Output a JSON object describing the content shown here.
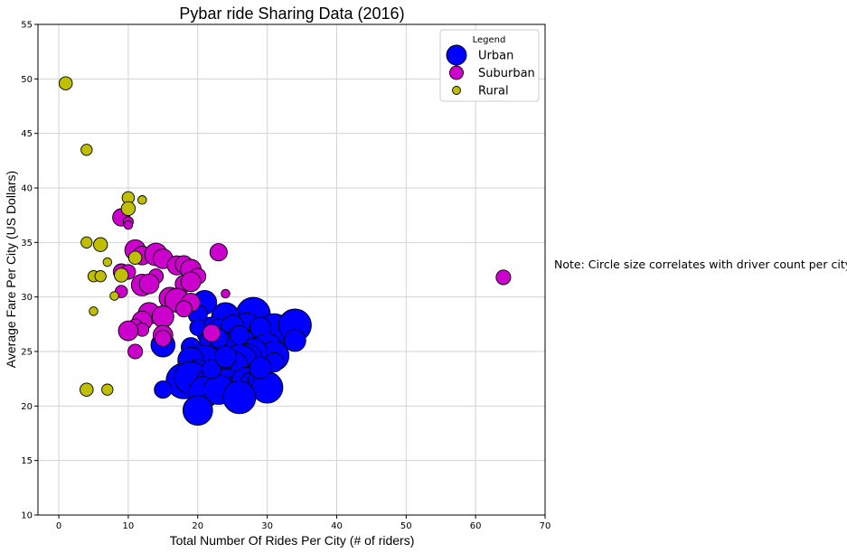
{
  "chart_data": {
    "type": "scatter",
    "title": "Pybar ride Sharing Data (2016)",
    "xlabel": "Total Number Of Rides Per City (# of riders)",
    "ylabel": "Average Fare Per City (US Dollars)",
    "xlim": [
      -3,
      70
    ],
    "ylim": [
      10,
      55
    ],
    "xticks": [
      "0",
      "10",
      "20",
      "30",
      "40",
      "50",
      "60",
      "70"
    ],
    "yticks": [
      "10",
      "15",
      "20",
      "25",
      "30",
      "35",
      "40",
      "45",
      "50",
      "55"
    ],
    "grid": true,
    "legend": {
      "title": "Legend",
      "placement": "top-right"
    },
    "note": "Note: Circle size correlates with driver count per city",
    "size_field": "approximate driver count per city (marker area)",
    "series": [
      {
        "name": "Urban",
        "color": "#0000ff",
        "points": [
          {
            "x": 28,
            "y": 28.4,
            "s": 55
          },
          {
            "x": 31,
            "y": 26.9,
            "s": 55
          },
          {
            "x": 34,
            "y": 27.4,
            "s": 50
          },
          {
            "x": 27,
            "y": 27.1,
            "s": 45
          },
          {
            "x": 24,
            "y": 28.2,
            "s": 35
          },
          {
            "x": 22,
            "y": 26.8,
            "s": 40
          },
          {
            "x": 21,
            "y": 29.5,
            "s": 25
          },
          {
            "x": 20,
            "y": 28.4,
            "s": 15
          },
          {
            "x": 23,
            "y": 27.0,
            "s": 20
          },
          {
            "x": 25,
            "y": 27.3,
            "s": 22
          },
          {
            "x": 29,
            "y": 27.2,
            "s": 18
          },
          {
            "x": 26,
            "y": 25.9,
            "s": 40
          },
          {
            "x": 24,
            "y": 25.5,
            "s": 30
          },
          {
            "x": 22,
            "y": 25.9,
            "s": 25
          },
          {
            "x": 19,
            "y": 25.4,
            "s": 15
          },
          {
            "x": 15,
            "y": 25.6,
            "s": 25
          },
          {
            "x": 30,
            "y": 25.2,
            "s": 45
          },
          {
            "x": 31,
            "y": 24.6,
            "s": 40
          },
          {
            "x": 34,
            "y": 26.0,
            "s": 20
          },
          {
            "x": 28,
            "y": 24.9,
            "s": 35
          },
          {
            "x": 27,
            "y": 24.2,
            "s": 50
          },
          {
            "x": 26,
            "y": 24.0,
            "s": 60
          },
          {
            "x": 25,
            "y": 23.6,
            "s": 45
          },
          {
            "x": 21,
            "y": 24.1,
            "s": 50
          },
          {
            "x": 19,
            "y": 24.2,
            "s": 30
          },
          {
            "x": 20,
            "y": 23.0,
            "s": 35
          },
          {
            "x": 18,
            "y": 22.3,
            "s": 60
          },
          {
            "x": 19,
            "y": 22.6,
            "s": 50
          },
          {
            "x": 22,
            "y": 22.3,
            "s": 40
          },
          {
            "x": 23,
            "y": 23.0,
            "s": 30
          },
          {
            "x": 24,
            "y": 22.0,
            "s": 45
          },
          {
            "x": 25,
            "y": 21.6,
            "s": 25
          },
          {
            "x": 27,
            "y": 22.2,
            "s": 40
          },
          {
            "x": 28,
            "y": 21.9,
            "s": 35
          },
          {
            "x": 29,
            "y": 22.4,
            "s": 25
          },
          {
            "x": 30,
            "y": 21.7,
            "s": 45
          },
          {
            "x": 21,
            "y": 21.3,
            "s": 45
          },
          {
            "x": 23,
            "y": 21.5,
            "s": 40
          },
          {
            "x": 26,
            "y": 20.8,
            "s": 50
          },
          {
            "x": 20,
            "y": 19.6,
            "s": 40
          },
          {
            "x": 15,
            "y": 21.5,
            "s": 12
          },
          {
            "x": 31,
            "y": 24.0,
            "s": 15
          },
          {
            "x": 29,
            "y": 23.5,
            "s": 20
          },
          {
            "x": 22,
            "y": 23.4,
            "s": 15
          },
          {
            "x": 23,
            "y": 26.2,
            "s": 15
          },
          {
            "x": 20,
            "y": 27.2,
            "s": 10
          },
          {
            "x": 24,
            "y": 24.5,
            "s": 20
          },
          {
            "x": 26,
            "y": 26.5,
            "s": 15
          }
        ]
      },
      {
        "name": "Suburban",
        "color": "#cc00cc",
        "points": [
          {
            "x": 64,
            "y": 31.8,
            "s": 8
          },
          {
            "x": 23,
            "y": 34.1,
            "s": 12
          },
          {
            "x": 22,
            "y": 26.7,
            "s": 12
          },
          {
            "x": 24,
            "y": 30.3,
            "s": 2
          },
          {
            "x": 9,
            "y": 37.3,
            "s": 12
          },
          {
            "x": 10,
            "y": 36.9,
            "s": 3
          },
          {
            "x": 10,
            "y": 36.6,
            "s": 2
          },
          {
            "x": 11,
            "y": 34.3,
            "s": 18
          },
          {
            "x": 12,
            "y": 33.8,
            "s": 14
          },
          {
            "x": 14,
            "y": 33.9,
            "s": 22
          },
          {
            "x": 15,
            "y": 33.5,
            "s": 16
          },
          {
            "x": 17,
            "y": 32.9,
            "s": 15
          },
          {
            "x": 18,
            "y": 33.0,
            "s": 12
          },
          {
            "x": 19,
            "y": 32.5,
            "s": 18
          },
          {
            "x": 20,
            "y": 31.9,
            "s": 10
          },
          {
            "x": 14,
            "y": 31.9,
            "s": 8
          },
          {
            "x": 9,
            "y": 32.3,
            "s": 10
          },
          {
            "x": 10,
            "y": 32.3,
            "s": 8
          },
          {
            "x": 12,
            "y": 31.1,
            "s": 20
          },
          {
            "x": 13,
            "y": 31.2,
            "s": 16
          },
          {
            "x": 18,
            "y": 31.2,
            "s": 12
          },
          {
            "x": 19,
            "y": 31.4,
            "s": 16
          },
          {
            "x": 9,
            "y": 30.5,
            "s": 5
          },
          {
            "x": 16,
            "y": 29.9,
            "s": 20
          },
          {
            "x": 17,
            "y": 29.7,
            "s": 25
          },
          {
            "x": 19,
            "y": 29.5,
            "s": 14
          },
          {
            "x": 13,
            "y": 28.5,
            "s": 20
          },
          {
            "x": 15,
            "y": 28.2,
            "s": 20
          },
          {
            "x": 18,
            "y": 28.9,
            "s": 10
          },
          {
            "x": 12,
            "y": 27.8,
            "s": 16
          },
          {
            "x": 11,
            "y": 27.3,
            "s": 8
          },
          {
            "x": 12,
            "y": 27.0,
            "s": 6
          },
          {
            "x": 10,
            "y": 26.9,
            "s": 16
          },
          {
            "x": 15,
            "y": 26.5,
            "s": 16
          },
          {
            "x": 15,
            "y": 26.2,
            "s": 10
          },
          {
            "x": 11,
            "y": 25.0,
            "s": 8
          }
        ]
      },
      {
        "name": "Rural",
        "color": "#bfbf00",
        "points": [
          {
            "x": 1,
            "y": 49.6,
            "s": 6
          },
          {
            "x": 4,
            "y": 43.5,
            "s": 4
          },
          {
            "x": 10,
            "y": 39.1,
            "s": 5
          },
          {
            "x": 12,
            "y": 38.9,
            "s": 2
          },
          {
            "x": 10,
            "y": 38.1,
            "s": 7
          },
          {
            "x": 4,
            "y": 35.0,
            "s": 4
          },
          {
            "x": 6,
            "y": 34.8,
            "s": 7
          },
          {
            "x": 11,
            "y": 33.6,
            "s": 6
          },
          {
            "x": 7,
            "y": 33.2,
            "s": 2
          },
          {
            "x": 5,
            "y": 31.9,
            "s": 4
          },
          {
            "x": 6,
            "y": 31.9,
            "s": 4
          },
          {
            "x": 9,
            "y": 32.0,
            "s": 7
          },
          {
            "x": 8,
            "y": 30.1,
            "s": 2
          },
          {
            "x": 5,
            "y": 28.7,
            "s": 2
          },
          {
            "x": 4,
            "y": 21.5,
            "s": 6
          },
          {
            "x": 7,
            "y": 21.5,
            "s": 4
          }
        ]
      }
    ]
  }
}
